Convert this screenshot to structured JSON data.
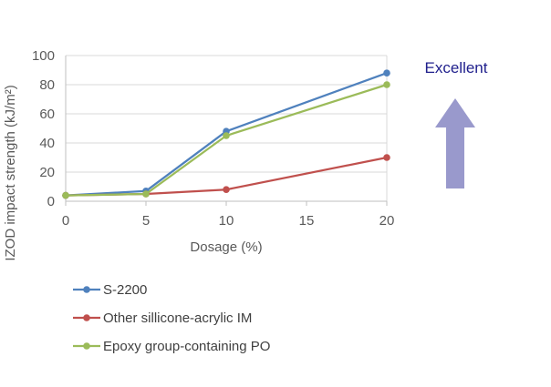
{
  "chart_data": {
    "type": "line",
    "title": "",
    "xlabel": "Dosage (%)",
    "ylabel": "IZOD impact strength (kJ/m²)",
    "x": [
      0,
      5,
      10,
      20
    ],
    "xticks": [
      0,
      5,
      10,
      15,
      20
    ],
    "yticks": [
      0,
      20,
      40,
      60,
      80,
      100
    ],
    "xlim": [
      0,
      20
    ],
    "ylim": [
      0,
      100
    ],
    "grid": "horizontal",
    "legend_position": "bottom-left",
    "series": [
      {
        "name": "S-2200",
        "color": "#4f81bd",
        "values": [
          4,
          7,
          48,
          88
        ]
      },
      {
        "name": "Other sillicone-acrylic IM",
        "color": "#c0504d",
        "values": [
          4,
          5,
          8,
          30
        ]
      },
      {
        "name": "Epoxy group-containing PO",
        "color": "#9bbb59",
        "values": [
          4,
          5,
          45,
          80
        ]
      }
    ]
  },
  "callout": {
    "label": "Excellent",
    "arrow_color": "#9999cc",
    "text_color": "#1f1f8c"
  }
}
